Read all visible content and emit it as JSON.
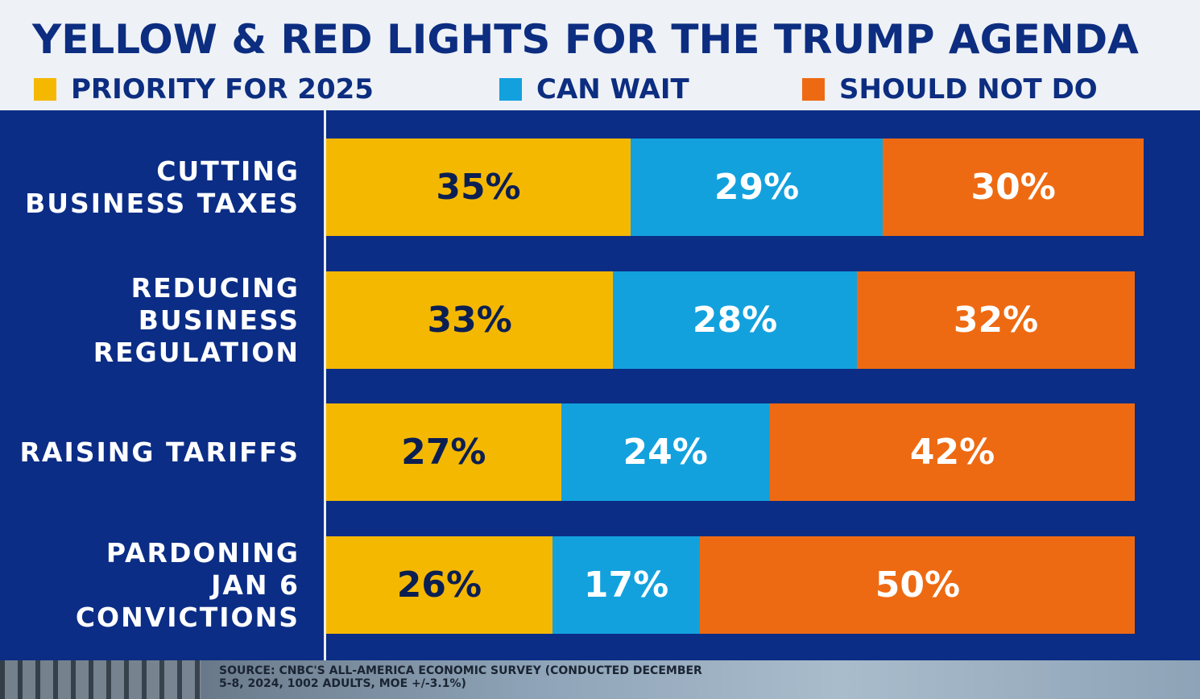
{
  "title": "YELLOW & RED LIGHTS FOR THE TRUMP AGENDA",
  "legend": [
    {
      "label": "PRIORITY FOR 2025",
      "color": "#f5b800",
      "icon": "yellow-square"
    },
    {
      "label": "CAN WAIT",
      "color": "#13a1de",
      "icon": "blue-square"
    },
    {
      "label": "SHOULD NOT DO",
      "color": "#ee6a12",
      "icon": "orange-square"
    }
  ],
  "chart_data": {
    "type": "bar",
    "orientation": "horizontal",
    "stacked": true,
    "title": "YELLOW & RED LIGHTS FOR THE TRUMP AGENDA",
    "categories": [
      [
        "CUTTING",
        "BUSINESS TAXES"
      ],
      [
        "REDUCING",
        "BUSINESS",
        "REGULATION"
      ],
      [
        "RAISING TARIFFS"
      ],
      [
        "PARDONING",
        "JAN 6",
        "CONVICTIONS"
      ]
    ],
    "series": [
      {
        "name": "PRIORITY FOR 2025",
        "color": "#f5b800",
        "text_color": "#0c1f52",
        "values": [
          35,
          33,
          27,
          26
        ],
        "labels": [
          "35%",
          "33%",
          "27%",
          "26%"
        ]
      },
      {
        "name": "CAN WAIT",
        "color": "#13a1de",
        "text_color": "#ffffff",
        "values": [
          29,
          28,
          24,
          17
        ],
        "labels": [
          "29%",
          "28%",
          "24%",
          "17%"
        ]
      },
      {
        "name": "SHOULD NOT DO",
        "color": "#ee6a12",
        "text_color": "#ffffff",
        "values": [
          30,
          32,
          42,
          50
        ],
        "labels": [
          "30%",
          "32%",
          "42%",
          "50%"
        ]
      }
    ],
    "units": "%",
    "legend_position": "top"
  },
  "source": {
    "line1": "SOURCE: CNBC'S ALL-AMERICA ECONOMIC SURVEY (CONDUCTED DECEMBER",
    "line2": "5-8, 2024, 1002 ADULTS, MOE +/-3.1%)"
  }
}
